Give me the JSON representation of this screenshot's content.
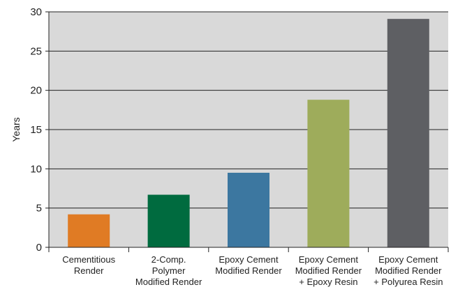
{
  "chart_data": {
    "type": "bar",
    "ylabel": "Years",
    "xlabel": "",
    "ylim": [
      0,
      30
    ],
    "yticks": [
      0,
      5,
      10,
      15,
      20,
      25,
      30
    ],
    "grid": true,
    "plot_background": "#d9d9d9",
    "categories": [
      [
        "Cementitious",
        "Render"
      ],
      [
        "2-Comp.",
        "Polymer",
        "Modified Render"
      ],
      [
        "Epoxy Cement",
        "Modified Render"
      ],
      [
        "Epoxy Cement",
        "Modified Render",
        "+ Epoxy Resin"
      ],
      [
        "Epoxy Cement",
        "Modified Render",
        "+ Polyurea Resin"
      ]
    ],
    "values": [
      4.2,
      6.7,
      9.5,
      18.8,
      29.1
    ],
    "colors": [
      "#e07b24",
      "#006b3f",
      "#3c77a0",
      "#9eac5b",
      "#5e5f63"
    ]
  }
}
